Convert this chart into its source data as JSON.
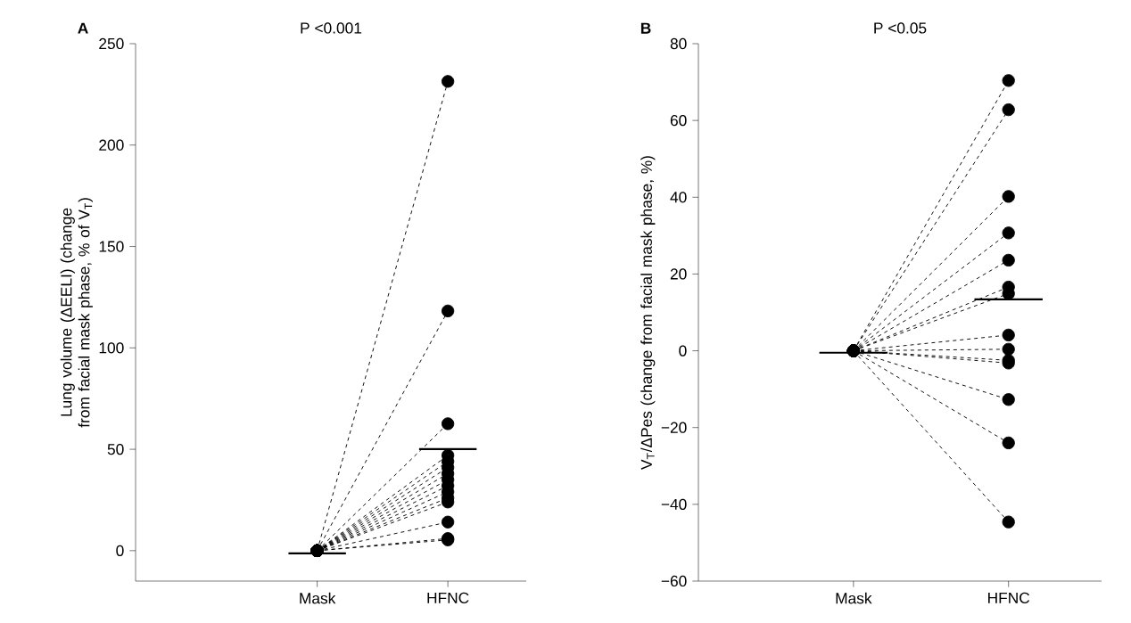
{
  "chart_data": [
    {
      "type": "line",
      "title": "P <0.001",
      "annotations": [
        "A"
      ],
      "ylabel": "Lung volume (ΔEELI) (change from facial mask phase, %  of V$_{T}$)",
      "categories": [
        "Mask",
        "HFNC"
      ],
      "ylim": [
        -15,
        250
      ],
      "yticks": [
        0,
        50,
        100,
        150,
        200,
        250
      ],
      "color": "#000000",
      "marker": "circle",
      "line_style": "dashed",
      "series": [
        {
          "values": [
            0,
            231.4
          ]
        },
        {
          "values": [
            0,
            118.2
          ]
        },
        {
          "values": [
            0,
            62.6
          ]
        },
        {
          "values": [
            0,
            47
          ]
        },
        {
          "values": [
            0,
            44
          ]
        },
        {
          "values": [
            0,
            41
          ]
        },
        {
          "values": [
            0,
            38
          ]
        },
        {
          "values": [
            0,
            35
          ]
        },
        {
          "values": [
            0,
            32
          ]
        },
        {
          "values": [
            0,
            29
          ]
        },
        {
          "values": [
            0,
            26
          ]
        },
        {
          "values": [
            0,
            24
          ]
        },
        {
          "values": [
            0,
            14.1
          ]
        },
        {
          "values": [
            0,
            6
          ]
        },
        {
          "values": [
            0,
            5.3
          ]
        },
        {
          "type": "box",
          "boxes": [
            {
              "low": -1.3,
              "q1": -1.3,
              "median": -1.3,
              "q3": -1.3,
              "high": -1.3
            },
            {
              "low": 50.1,
              "q1": 50.1,
              "median": 50.1,
              "q3": 50.1,
              "high": 50.1
            }
          ]
        }
      ]
    },
    {
      "type": "line",
      "title": "P <0.05",
      "annotations": [
        "B"
      ],
      "ylabel": "V$_{T}$/ΔPes (change from facial mask phase, %)",
      "categories": [
        "Mask",
        "HFNC"
      ],
      "ylim": [
        -60,
        80
      ],
      "yticks": [
        {
          "value": -60,
          "label": "−60"
        },
        {
          "value": -40,
          "label": "−40"
        },
        {
          "value": -20,
          "label": "−20"
        },
        0,
        20,
        40,
        60,
        80
      ],
      "color": "#000000",
      "marker": "circle",
      "line_style": "dashed",
      "series": [
        {
          "values": [
            0,
            70.4
          ]
        },
        {
          "values": [
            0,
            62.8
          ]
        },
        {
          "values": [
            0,
            40.2
          ]
        },
        {
          "values": [
            0,
            30.7
          ]
        },
        {
          "values": [
            0,
            23.6
          ]
        },
        {
          "values": [
            0,
            16.6
          ]
        },
        {
          "values": [
            0,
            14.9
          ]
        },
        {
          "values": [
            0,
            4.1
          ]
        },
        {
          "values": [
            0,
            0.4
          ]
        },
        {
          "values": [
            0,
            -2.5
          ]
        },
        {
          "values": [
            0,
            -3.2
          ]
        },
        {
          "values": [
            0,
            -12.7
          ]
        },
        {
          "values": [
            0,
            -24
          ]
        },
        {
          "values": [
            0,
            -44.6
          ]
        },
        {
          "type": "box",
          "boxes": [
            {
              "low": -0.5,
              "q1": -0.5,
              "median": -0.5,
              "q3": -0.5,
              "high": -0.5
            },
            {
              "low": 13.4,
              "q1": 13.4,
              "median": 13.4,
              "q3": 13.4,
              "high": 13.4
            }
          ]
        }
      ]
    }
  ]
}
